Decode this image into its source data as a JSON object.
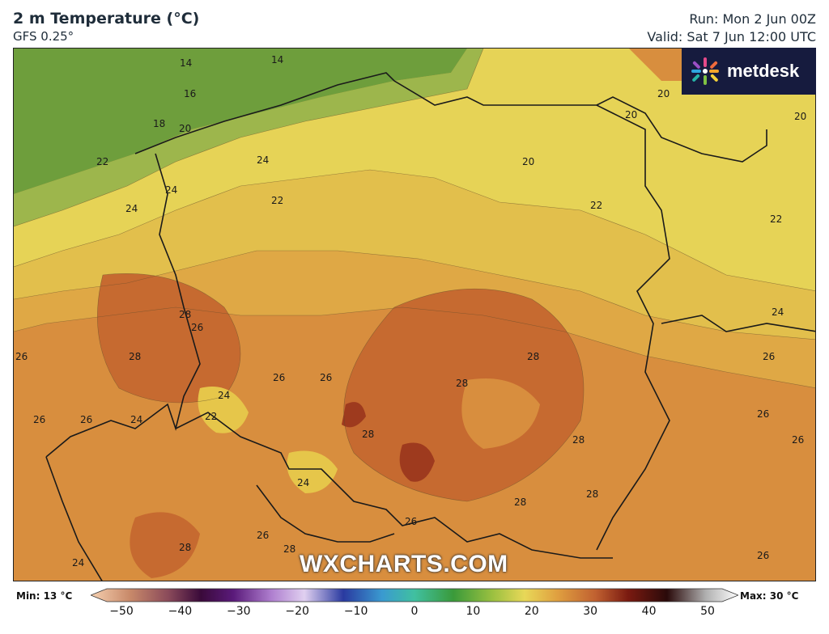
{
  "header": {
    "title": "2 m Temperature (°C)",
    "model": "GFS 0.25°",
    "run": "Run: Mon 2 Jun 00Z",
    "valid": "Valid: Sat 7 Jun 12:00 UTC"
  },
  "logo": {
    "text": "metdesk",
    "icon": "flower-icon"
  },
  "watermark": "WXCHARTS.COM",
  "legend": {
    "min_label": "Min: 13 °C",
    "max_label": "Max: 30 °C",
    "ticks": [
      "−50",
      "−40",
      "−30",
      "−20",
      "−10",
      "0",
      "10",
      "20",
      "30",
      "40",
      "50"
    ],
    "range": [
      -50,
      50
    ]
  },
  "contour_labels": [
    {
      "text": "14"
    },
    {
      "text": "14"
    },
    {
      "text": "16"
    },
    {
      "text": "18"
    },
    {
      "text": "20"
    },
    {
      "text": "20"
    },
    {
      "text": "20"
    },
    {
      "text": "20"
    },
    {
      "text": "20"
    },
    {
      "text": "22"
    },
    {
      "text": "24"
    },
    {
      "text": "24"
    },
    {
      "text": "24"
    },
    {
      "text": "22"
    },
    {
      "text": "22"
    },
    {
      "text": "22"
    },
    {
      "text": "28"
    },
    {
      "text": "26"
    },
    {
      "text": "28"
    },
    {
      "text": "24"
    },
    {
      "text": "26"
    },
    {
      "text": "26"
    },
    {
      "text": "28"
    },
    {
      "text": "28"
    },
    {
      "text": "26"
    },
    {
      "text": "26"
    },
    {
      "text": "26"
    },
    {
      "text": "24"
    },
    {
      "text": "22"
    },
    {
      "text": "24"
    },
    {
      "text": "28"
    },
    {
      "text": "28"
    },
    {
      "text": "24"
    },
    {
      "text": "26"
    },
    {
      "text": "26"
    },
    {
      "text": "26"
    },
    {
      "text": "28"
    },
    {
      "text": "28"
    },
    {
      "text": "28"
    },
    {
      "text": "26"
    },
    {
      "text": "26"
    },
    {
      "text": "26"
    },
    {
      "text": "28"
    },
    {
      "text": "24"
    }
  ],
  "colors": {
    "t14": "#6e9e3c",
    "t16": "#8fb04a",
    "t18": "#b3bf52",
    "t20": "#e8e058",
    "t22": "#e6c64a",
    "t24": "#dfae46",
    "t26": "#d88e3e",
    "t28": "#c66a30",
    "t30": "#9e3a1e"
  }
}
